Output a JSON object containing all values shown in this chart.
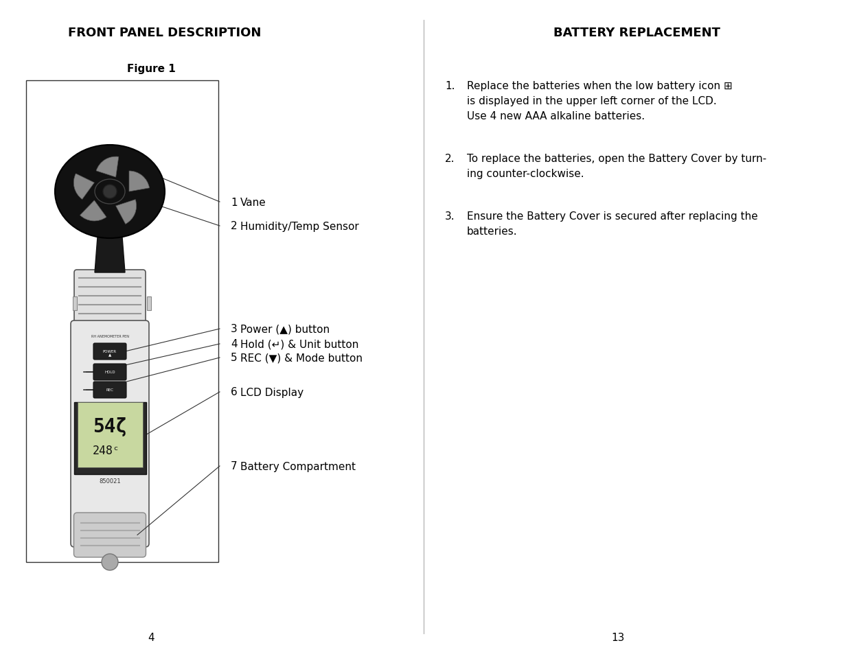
{
  "bg_color": "#ffffff",
  "text_color": "#000000",
  "left_title": "FRONT PANEL DESCRIPTION",
  "right_title": "BATTERY REPLACEMENT",
  "figure_label": "Figure 1",
  "left_items": [
    {
      "num": "1",
      "label": "Vane"
    },
    {
      "num": "2",
      "label": "Humidity/Temp Sensor"
    },
    {
      "num": "3",
      "label": "Power (▲) button"
    },
    {
      "num": "4",
      "label": "Hold (↵) & Unit button"
    },
    {
      "num": "5",
      "label": "REC (▼) & Mode button"
    },
    {
      "num": "6",
      "label": "LCD Display"
    },
    {
      "num": "7",
      "label": "Battery Compartment"
    }
  ],
  "right_items": [
    {
      "num": "1.",
      "lines": [
        "Replace the batteries when the low battery icon ⊞",
        "is displayed in the upper left corner of the LCD.",
        "Use 4 new AAA alkaline batteries."
      ]
    },
    {
      "num": "2.",
      "lines": [
        "To replace the batteries, open the Battery Cover by turn-",
        "ing counter-clockwise."
      ]
    },
    {
      "num": "3.",
      "lines": [
        "Ensure the Battery Cover is secured after replacing the",
        "batteries."
      ]
    }
  ],
  "page_left": "4",
  "page_right": "13"
}
